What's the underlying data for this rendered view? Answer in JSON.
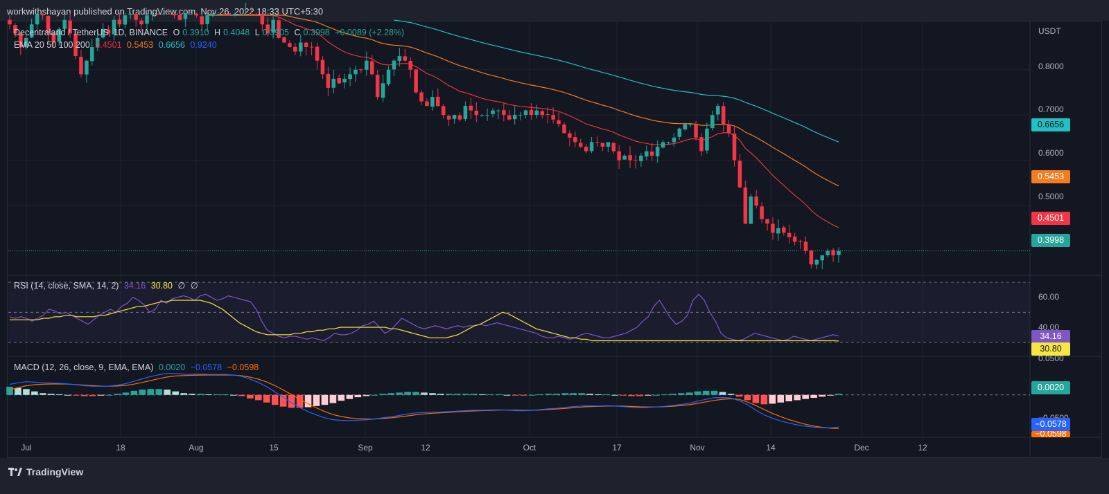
{
  "header": {
    "publisher": "workwithshayan published on TradingView.com, Nov 26, 2022 18:33 UTC+5:30"
  },
  "footer": {
    "brand": "TradingView"
  },
  "legend": {
    "symbol": "Decentraland / TetherUS, 1D, BINANCE",
    "o_label": "O",
    "o": "0.3910",
    "h_label": "H",
    "h": "0.4048",
    "l_label": "L",
    "l": "0.3905",
    "c_label": "C",
    "c": "0.3998",
    "change": "+0.0089 (+2.28%)",
    "ema_label": "EMA 20 50 100 200",
    "ema20": "0.4501",
    "ema50": "0.5453",
    "ema100": "0.6656",
    "ema200": "0.9240",
    "rsi_label": "RSI (14, close, SMA, 14, 2)",
    "rsi": "34.16",
    "rsi_sma": "30.80",
    "rsi_x1": "∅",
    "rsi_x2": "∅",
    "macd_label": "MACD (12, 26, close, 9, EMA, EMA)",
    "macd_hist": "0.0020",
    "macd": "−0.0578",
    "macd_signal": "−0.0598"
  },
  "price_axis": {
    "unit": "USDT",
    "ticks": [
      "0.8000",
      "0.7000",
      "0.6000",
      "0.5000"
    ]
  },
  "rsi_axis": {
    "ticks": [
      "60.00",
      "40.00"
    ]
  },
  "macd_axis": {
    "ticks": [
      "0.0500",
      "−0.0500"
    ]
  },
  "badges": {
    "ema100": "0.6656",
    "ema50": "0.5453",
    "ema20": "0.4501",
    "last": "0.3998",
    "rsi": "34.16",
    "rsi_sma": "30.80",
    "macd_hist": "0.0020",
    "macd": "−0.0578",
    "macd_signal": "−0.0598"
  },
  "x_axis": {
    "ticks": [
      "Jul",
      "18",
      "Aug",
      "15",
      "Sep",
      "12",
      "Oct",
      "17",
      "Nov",
      "14",
      "Dec",
      "12"
    ]
  },
  "colors": {
    "bg": "#131722",
    "up": "#26a69a",
    "down": "#f23645",
    "ema20": "#e8323c",
    "ema50": "#f57c1f",
    "ema100": "#22c1c3",
    "ema200": "#2962ff",
    "rsi": "#7e57c2",
    "rsi_sma": "#f5e642",
    "macd": "#2962ff",
    "signal": "#ff6d00"
  },
  "chart_data": [
    {
      "type": "candlestick",
      "title": "Decentraland / TetherUS, 1D, BINANCE",
      "ylabel": "USDT",
      "ylim": [
        0.355,
        0.905
      ],
      "x_range": [
        "2022-06-27",
        "2022-12-17"
      ],
      "candles_daily_close": [
        0.9,
        0.88,
        0.85,
        0.87,
        0.9,
        0.93,
        0.92,
        0.88,
        0.86,
        0.89,
        0.91,
        0.88,
        0.83,
        0.79,
        0.82,
        0.85,
        0.87,
        0.89,
        0.88,
        0.91,
        0.9,
        0.92,
        0.93,
        0.91,
        0.9,
        0.92,
        0.94,
        0.93,
        0.95,
        0.94,
        0.92,
        0.91,
        0.93,
        0.94,
        0.92,
        0.9,
        0.92,
        0.93,
        0.95,
        0.94,
        0.92,
        0.93,
        0.95,
        0.96,
        0.94,
        0.93,
        0.9,
        0.88,
        0.91,
        0.87,
        0.86,
        0.85,
        0.84,
        0.86,
        0.85,
        0.85,
        0.82,
        0.79,
        0.76,
        0.78,
        0.77,
        0.78,
        0.79,
        0.8,
        0.8,
        0.82,
        0.79,
        0.74,
        0.77,
        0.8,
        0.82,
        0.83,
        0.82,
        0.8,
        0.75,
        0.73,
        0.72,
        0.74,
        0.72,
        0.7,
        0.69,
        0.7,
        0.69,
        0.72,
        0.71,
        0.7,
        0.7,
        0.7,
        0.71,
        0.71,
        0.7,
        0.69,
        0.7,
        0.7,
        0.71,
        0.7,
        0.71,
        0.7,
        0.7,
        0.69,
        0.68,
        0.66,
        0.65,
        0.64,
        0.63,
        0.62,
        0.64,
        0.64,
        0.63,
        0.64,
        0.62,
        0.6,
        0.61,
        0.6,
        0.6,
        0.61,
        0.62,
        0.61,
        0.63,
        0.64,
        0.64,
        0.65,
        0.67,
        0.68,
        0.68,
        0.65,
        0.62,
        0.67,
        0.7,
        0.72,
        0.68,
        0.66,
        0.6,
        0.54,
        0.46,
        0.52,
        0.5,
        0.47,
        0.46,
        0.44,
        0.45,
        0.44,
        0.43,
        0.42,
        0.42,
        0.4,
        0.37,
        0.38,
        0.39,
        0.4,
        0.39,
        0.3998
      ],
      "ema": {
        "EMA20": {
          "last": 0.4501
        },
        "EMA50": {
          "last": 0.5453
        },
        "EMA100": {
          "last": 0.6656
        },
        "EMA200": {
          "last": 0.924
        }
      }
    },
    {
      "type": "line",
      "title": "RSI (14, close, SMA, 14, 2)",
      "ylim": [
        22,
        70
      ],
      "bands": [
        30,
        50,
        70
      ],
      "series": [
        {
          "name": "RSI",
          "values": [
            47,
            46,
            47,
            46,
            44,
            46,
            48,
            52,
            51,
            49,
            50,
            48,
            46,
            44,
            42,
            45,
            48,
            50,
            52,
            50,
            54,
            56,
            60,
            58,
            55,
            50,
            52,
            58,
            56,
            59,
            60,
            61,
            60,
            58,
            61,
            62,
            60,
            58,
            59,
            61,
            60,
            59,
            58,
            57,
            52,
            44,
            38,
            36,
            34,
            33,
            34,
            34,
            33,
            32,
            33,
            32,
            31,
            33,
            36,
            35,
            35,
            36,
            38,
            41,
            42,
            44,
            40,
            36,
            38,
            42,
            46,
            44,
            42,
            40,
            39,
            40,
            41,
            40,
            39,
            40,
            41,
            40,
            41,
            41,
            42,
            41,
            42,
            43,
            42,
            41,
            40,
            39,
            38,
            37,
            36,
            34,
            33,
            33,
            34,
            33,
            32,
            33,
            35,
            36,
            35,
            34,
            33,
            33,
            34,
            35,
            36,
            38,
            40,
            44,
            47,
            54,
            58,
            52,
            46,
            42,
            44,
            48,
            58,
            62,
            58,
            50,
            44,
            36,
            33,
            32,
            31,
            32,
            34,
            36,
            35,
            34,
            33,
            32,
            31,
            32,
            34,
            33,
            32,
            31,
            32,
            33,
            34,
            35,
            34.16
          ]
        },
        {
          "name": "RSI SMA",
          "values": [
            45,
            45,
            45,
            45,
            45,
            45,
            46,
            46,
            47,
            47,
            48,
            48,
            47,
            47,
            47,
            47,
            48,
            48,
            49,
            50,
            51,
            52,
            53,
            54,
            54,
            55,
            56,
            57,
            57,
            58,
            58,
            58,
            58,
            58,
            58,
            57,
            56,
            54,
            52,
            49,
            46,
            43,
            41,
            39,
            37,
            36,
            35,
            35,
            35,
            35,
            35,
            36,
            36,
            37,
            37,
            38,
            38,
            39,
            39,
            40,
            40,
            40,
            40,
            40,
            40,
            40,
            40,
            40,
            39,
            39,
            38,
            37,
            36,
            35,
            34,
            33,
            33,
            33,
            33,
            34,
            35,
            37,
            39,
            41,
            42,
            44,
            46,
            48,
            50,
            49,
            47,
            45,
            43,
            41,
            39,
            38,
            37,
            36,
            35,
            34,
            33,
            33,
            32,
            32,
            31,
            31,
            31,
            31,
            31,
            31,
            31,
            31,
            31,
            31,
            31,
            31,
            31,
            31,
            31,
            31,
            31,
            31,
            31,
            31,
            31,
            31,
            31,
            31,
            31,
            31,
            31,
            31,
            31,
            31,
            31,
            31,
            31,
            31,
            31,
            31,
            31,
            31,
            31,
            31,
            31,
            31,
            31,
            31,
            30.8
          ]
        }
      ]
    },
    {
      "type": "bar",
      "title": "MACD (12, 26, close, 9, EMA, EMA)",
      "ylim": [
        -0.07,
        0.06
      ],
      "series": [
        {
          "name": "Histogram",
          "values": [
            0.014,
            0.012,
            0.01,
            0.006,
            0.003,
            0.002,
            0.001,
            0.0,
            -0.001,
            -0.002,
            -0.002,
            -0.001,
            0.0,
            0.002,
            0.004,
            0.007,
            0.009,
            0.01,
            0.01,
            0.009,
            0.006,
            0.003,
            0.002,
            0.002,
            0.001,
            0.001,
            0.001,
            0.0,
            -0.002,
            -0.006,
            -0.009,
            -0.013,
            -0.017,
            -0.02,
            -0.022,
            -0.022,
            -0.021,
            -0.019,
            -0.017,
            -0.014,
            -0.01,
            -0.007,
            -0.004,
            -0.002,
            0.0,
            0.002,
            0.003,
            0.004,
            0.005,
            0.005,
            0.004,
            0.003,
            0.002,
            0.002,
            0.002,
            0.002,
            0.002,
            0.001,
            0.001,
            0.001,
            0.0,
            -0.001,
            -0.001,
            0.0,
            0.001,
            0.002,
            0.002,
            0.003,
            0.003,
            0.003,
            0.002,
            0.001,
            0.001,
            0.0,
            -0.001,
            -0.002,
            -0.002,
            -0.001,
            0.0,
            0.001,
            0.002,
            0.003,
            0.004,
            0.006,
            0.007,
            0.007,
            0.005,
            0.002,
            -0.003,
            -0.009,
            -0.014,
            -0.016,
            -0.015,
            -0.013,
            -0.011,
            -0.009,
            -0.007,
            -0.005,
            -0.003,
            -0.001,
            0.002
          ]
        },
        {
          "name": "MACD",
          "values": [
            0.0016
          ]
        },
        {
          "name": "Signal",
          "values": [
            0.0005
          ]
        }
      ]
    }
  ]
}
